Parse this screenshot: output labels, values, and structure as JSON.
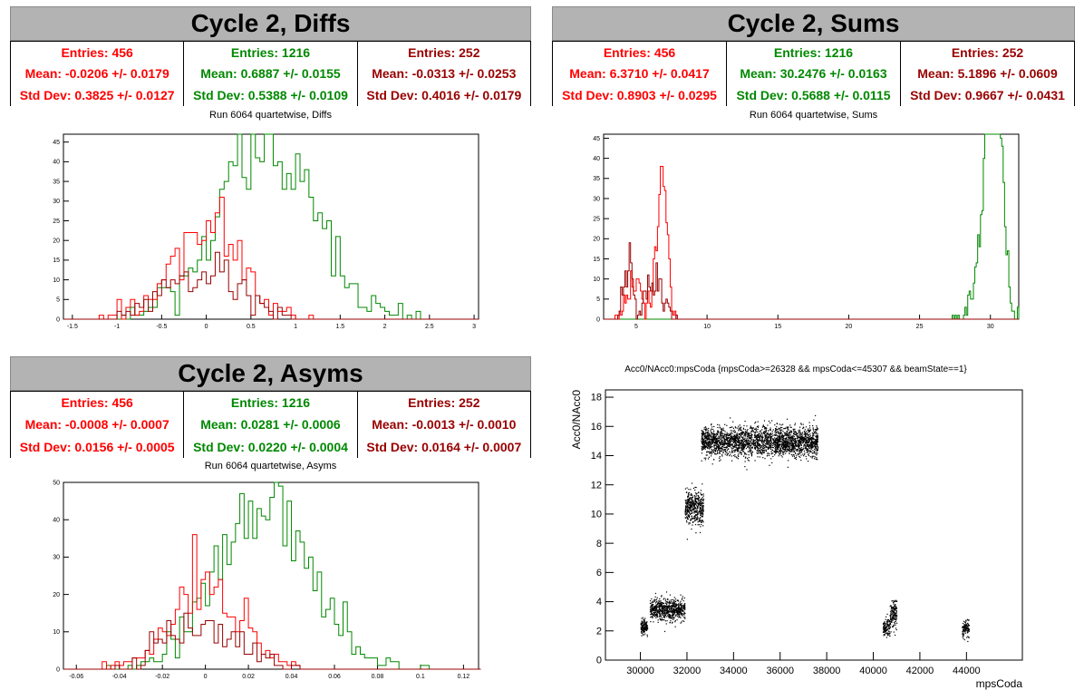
{
  "panels": [
    {
      "title": "Cycle 2, Diffs",
      "subtitle": "Run 6064 quartetwise, Diffs",
      "stats": [
        {
          "entries": "Entries: 456",
          "mean": "Mean: -0.0206 +/- 0.0179",
          "std": "Std Dev: 0.3825 +/- 0.0127"
        },
        {
          "entries": "Entries: 1216",
          "mean": "Mean: 0.6887 +/- 0.0155",
          "std": "Std Dev: 0.5388 +/- 0.0109"
        },
        {
          "entries": "Entries: 252",
          "mean": "Mean: -0.0313 +/- 0.0253",
          "std": "Std Dev: 0.4016 +/- 0.0179"
        }
      ]
    },
    {
      "title": "Cycle 2, Sums",
      "subtitle": "Run 6064 quartetwise, Sums",
      "stats": [
        {
          "entries": "Entries: 456",
          "mean": "Mean: 6.3710 +/- 0.0417",
          "std": "Std Dev: 0.8903 +/- 0.0295"
        },
        {
          "entries": "Entries: 1216",
          "mean": "Mean: 30.2476 +/- 0.0163",
          "std": "Std Dev: 0.5688 +/- 0.0115"
        },
        {
          "entries": "Entries: 252",
          "mean": "Mean: 5.1896 +/- 0.0609",
          "std": "Std Dev: 0.9667 +/- 0.0431"
        }
      ]
    },
    {
      "title": "Cycle 2, Asyms",
      "subtitle": "Run 6064 quartetwise, Asyms",
      "stats": [
        {
          "entries": "Entries: 456",
          "mean": "Mean: -0.0008 +/- 0.0007",
          "std": "Std Dev: 0.0156 +/- 0.0005"
        },
        {
          "entries": "Entries: 1216",
          "mean": "Mean: 0.0281 +/- 0.0006",
          "std": "Std Dev: 0.0220 +/- 0.0004"
        },
        {
          "entries": "Entries: 252",
          "mean": "Mean: -0.0013 +/- 0.0010",
          "std": "Std Dev: 0.0164 +/- 0.0007"
        }
      ]
    }
  ],
  "colors": {
    "red": "#ff0000",
    "green": "#008800",
    "dark": "#990000"
  },
  "chart_data": [
    {
      "type": "bar",
      "subtype": "step-histogram",
      "title": "Run 6064 quartetwise, Diffs",
      "xlim": [
        -1.6,
        3.05
      ],
      "ylim": [
        0,
        47
      ],
      "xticks": [
        -1.5,
        -1,
        -0.5,
        0,
        0.5,
        1,
        1.5,
        2,
        2.5,
        3
      ],
      "xtick_labels": [
        "-1.5",
        "-1",
        "-0.5",
        "0",
        "0.5",
        "1",
        "1.5",
        "2",
        "2.5",
        "3"
      ],
      "yticks": [
        0,
        5,
        10,
        15,
        20,
        25,
        30,
        35,
        40,
        45
      ],
      "ytick_labels": [
        "0",
        "5",
        "10",
        "15",
        "20",
        "25",
        "30",
        "35",
        "40",
        "45"
      ],
      "series": [
        {
          "dist": "gauss",
          "entries": 1216,
          "mean": 0.6887,
          "std": 0.5388,
          "color": "#008800",
          "bin": 0.05,
          "seed": 11
        },
        {
          "dist": "gauss",
          "entries": 456,
          "mean": -0.0206,
          "std": 0.3825,
          "color": "#ff0000",
          "bin": 0.05,
          "seed": 23
        },
        {
          "dist": "gauss",
          "entries": 252,
          "mean": -0.0313,
          "std": 0.4016,
          "color": "#990000",
          "bin": 0.05,
          "seed": 37
        }
      ]
    },
    {
      "type": "bar",
      "subtype": "step-histogram",
      "title": "Run 6064 quartetwise, Sums",
      "xlim": [
        2.7,
        32
      ],
      "ylim": [
        0,
        46
      ],
      "xticks": [
        5,
        10,
        15,
        20,
        25,
        30
      ],
      "xtick_labels": [
        "5",
        "10",
        "15",
        "20",
        "25",
        "30"
      ],
      "yticks": [
        0,
        5,
        10,
        15,
        20,
        25,
        30,
        35,
        40,
        45
      ],
      "ytick_labels": [
        "0",
        "5",
        "10",
        "15",
        "20",
        "25",
        "30",
        "35",
        "40",
        "45"
      ],
      "series": [
        {
          "dist": "mix",
          "parts": [
            {
              "n": 850,
              "mean": 30.3,
              "std": 0.45
            },
            {
              "n": 366,
              "mean": 29.8,
              "std": 0.8
            }
          ],
          "color": "#008800",
          "bin": 0.1,
          "seed": 5
        },
        {
          "dist": "mix",
          "parts": [
            {
              "n": 330,
              "mean": 6.8,
              "std": 0.35
            },
            {
              "n": 126,
              "mean": 4.9,
              "std": 0.6
            }
          ],
          "color": "#ff0000",
          "bin": 0.1,
          "seed": 7
        },
        {
          "dist": "mix",
          "parts": [
            {
              "n": 110,
              "mean": 4.4,
              "std": 0.3
            },
            {
              "n": 142,
              "mean": 6.3,
              "std": 0.6
            }
          ],
          "color": "#990000",
          "bin": 0.1,
          "seed": 9
        }
      ]
    },
    {
      "type": "bar",
      "subtype": "step-histogram",
      "title": "Run 6064 quartetwise, Asyms",
      "xlim": [
        -0.066,
        0.127
      ],
      "ylim": [
        0,
        50
      ],
      "xticks": [
        -0.06,
        -0.04,
        -0.02,
        0,
        0.02,
        0.04,
        0.06,
        0.08,
        0.1,
        0.12
      ],
      "xtick_labels": [
        "-0.06",
        "-0.04",
        "-0.02",
        "0",
        "0.02",
        "0.04",
        "0.06",
        "0.08",
        "0.1",
        "0.12"
      ],
      "yticks": [
        0,
        10,
        20,
        30,
        40,
        50
      ],
      "ytick_labels": [
        "0",
        "10",
        "20",
        "30",
        "40",
        "50"
      ],
      "series": [
        {
          "dist": "gauss",
          "entries": 1216,
          "mean": 0.0281,
          "std": 0.022,
          "color": "#008800",
          "bin": 0.002,
          "seed": 13
        },
        {
          "dist": "gauss",
          "entries": 456,
          "mean": -0.0008,
          "std": 0.0156,
          "color": "#ff0000",
          "bin": 0.002,
          "seed": 17
        },
        {
          "dist": "gauss",
          "entries": 252,
          "mean": -0.0013,
          "std": 0.0164,
          "color": "#990000",
          "bin": 0.002,
          "seed": 19
        }
      ]
    },
    {
      "type": "scatter",
      "title": "Acc0/NAcc0:mpsCoda {mpsCoda>=26328 && mpsCoda<=45307 && beamState==1}",
      "xlabel": "mpsCoda",
      "ylabel": "Acc0/NAcc0",
      "xlim": [
        28500,
        46400
      ],
      "ylim": [
        0,
        18.5
      ],
      "xticks": [
        30000,
        32000,
        34000,
        36000,
        38000,
        40000,
        42000,
        44000
      ],
      "xtick_labels": [
        "30000",
        "32000",
        "34000",
        "36000",
        "38000",
        "40000",
        "42000",
        "44000"
      ],
      "yticks": [
        0,
        2,
        4,
        6,
        8,
        10,
        12,
        14,
        16,
        18
      ],
      "ytick_labels": [
        "0",
        "2",
        "4",
        "6",
        "8",
        "10",
        "12",
        "14",
        "16",
        "18"
      ],
      "clusters": [
        {
          "x": [
            30000,
            30300
          ],
          "y": [
            2.3,
            0.25
          ],
          "n": 150
        },
        {
          "x": [
            30400,
            31900
          ],
          "y": [
            3.5,
            0.35
          ],
          "n": 700
        },
        {
          "x": [
            31900,
            32700
          ],
          "y": [
            10.5,
            0.6
          ],
          "n": 450
        },
        {
          "x": [
            32600,
            37600
          ],
          "y": [
            15.0,
            0.5
          ],
          "n": 2600
        },
        {
          "x": [
            40400,
            40700
          ],
          "y": [
            2.3,
            0.35
          ],
          "n": 120
        },
        {
          "x": [
            40700,
            41000
          ],
          "y": [
            3.2,
            0.45
          ],
          "n": 150
        },
        {
          "x": [
            43800,
            44100
          ],
          "y": [
            2.2,
            0.3
          ],
          "n": 120
        }
      ]
    }
  ]
}
